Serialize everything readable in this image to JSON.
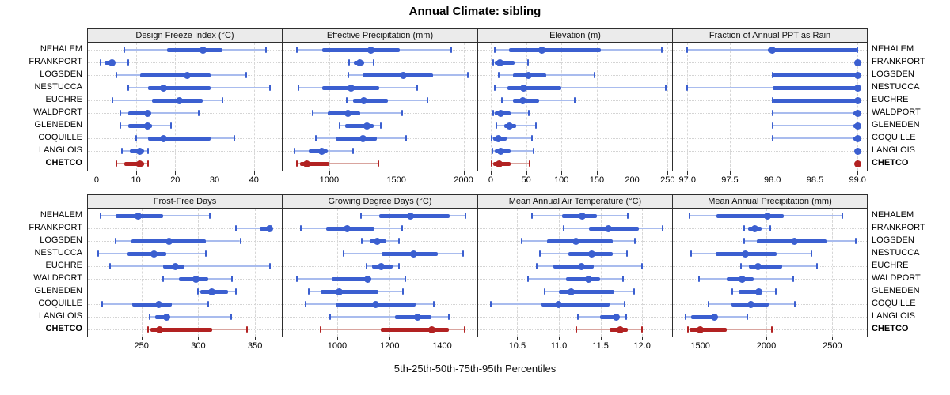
{
  "title": "Annual Climate: sibling",
  "caption": "5th-25th-50th-75th-95th Percentiles",
  "sites": [
    "NEHALEM",
    "FRANKPORT",
    "LOGSDEN",
    "NESTUCCA",
    "EUCHRE",
    "WALDPORT",
    "GLENEDEN",
    "COQUILLE",
    "LANGLOIS",
    "CHETCO"
  ],
  "highlight_site": "CHETCO",
  "colors": {
    "series_main": "#3b5fd0",
    "series_light": "#a9bcee",
    "highlight_main": "#b22222",
    "highlight_light": "#d9a49e",
    "strip_bg": "#ebebeb",
    "grid": "#d7d7d7",
    "border": "#2e2e2e"
  },
  "chart_data": {
    "type": "dotplot",
    "subtype": "percentile-interval-trellis",
    "percentiles": [
      5,
      25,
      50,
      75,
      95
    ],
    "legend_position": "none",
    "grid": "dashed-vertical-and-dotted-horizontal",
    "categories": [
      "NEHALEM",
      "FRANKPORT",
      "LOGSDEN",
      "NESTUCCA",
      "EUCHRE",
      "WALDPORT",
      "GLENEDEN",
      "COQUILLE",
      "LANGLOIS",
      "CHETCO"
    ],
    "panels": [
      {
        "id": "design-freeze-index",
        "title": "Design Freeze Index (°C)",
        "row": 0,
        "col": 0,
        "tick_values": [
          0,
          10,
          20,
          30,
          40
        ],
        "tick_labels": [
          "0",
          "10",
          "20",
          "30",
          "40"
        ],
        "xlim": [
          -2.2,
          47.1
        ],
        "values": {
          "NEHALEM": [
            7,
            18,
            27,
            32,
            43
          ],
          "FRANKPORT": [
            1,
            2,
            4,
            4.5,
            8
          ],
          "LOGSDEN": [
            5,
            11,
            23,
            29,
            38
          ],
          "NESTUCCA": [
            8,
            13,
            17,
            29,
            44
          ],
          "EUCHRE": [
            4,
            14,
            21,
            27,
            32
          ],
          "WALDPORT": [
            6,
            8,
            13,
            13.5,
            26
          ],
          "GLENEDEN": [
            6,
            8,
            13,
            14,
            19
          ],
          "COQUILLE": [
            10,
            13,
            17,
            29,
            35
          ],
          "LANGLOIS": [
            6.5,
            8.5,
            11,
            12,
            13
          ],
          "CHETCO": [
            5,
            7,
            11,
            12,
            13
          ]
        }
      },
      {
        "id": "effective-precipitation",
        "title": "Effective Precipitation (mm)",
        "row": 0,
        "col": 1,
        "tick_values": [
          1000,
          1500,
          2000
        ],
        "tick_labels": [
          "1000",
          "1500",
          "2000"
        ],
        "xlim": [
          653,
          2103
        ],
        "values": {
          "NEHALEM": [
            760,
            950,
            1310,
            1525,
            1910
          ],
          "FRANKPORT": [
            1150,
            1185,
            1230,
            1260,
            1330
          ],
          "LOGSDEN": [
            1140,
            1250,
            1550,
            1775,
            2030
          ],
          "NESTUCCA": [
            770,
            950,
            1165,
            1375,
            1655
          ],
          "EUCHRE": [
            1130,
            1180,
            1260,
            1435,
            1730
          ],
          "WALDPORT": [
            875,
            990,
            1140,
            1230,
            1545
          ],
          "GLENEDEN": [
            1075,
            1120,
            1280,
            1330,
            1385
          ],
          "COQUILLE": [
            900,
            1050,
            1250,
            1355,
            1570
          ],
          "LANGLOIS": [
            740,
            850,
            945,
            990,
            1180
          ],
          "CHETCO": [
            760,
            780,
            830,
            1000,
            1365
          ]
        }
      },
      {
        "id": "elevation",
        "title": "Elevation (m)",
        "row": 0,
        "col": 2,
        "tick_values": [
          0,
          50,
          100,
          150,
          200,
          250
        ],
        "tick_labels": [
          "0",
          "50",
          "100",
          "150",
          "200",
          "250"
        ],
        "xlim": [
          -17.8,
          256.4
        ],
        "values": {
          "NEHALEM": [
            6,
            26,
            72,
            156,
            242
          ],
          "FRANKPORT": [
            4,
            6,
            13,
            34,
            53
          ],
          "LOGSDEN": [
            11,
            31,
            53,
            79,
            147
          ],
          "NESTUCCA": [
            6,
            24,
            47,
            100,
            247
          ],
          "EUCHRE": [
            16,
            32,
            45,
            68,
            119
          ],
          "WALDPORT": [
            3,
            6,
            14,
            28,
            54
          ],
          "GLENEDEN": [
            8,
            19,
            26,
            36,
            64
          ],
          "COQUILLE": [
            1,
            4,
            11,
            23,
            58
          ],
          "LANGLOIS": [
            2,
            6,
            14,
            28,
            60
          ],
          "CHETCO": [
            1,
            3,
            12,
            28,
            55
          ]
        }
      },
      {
        "id": "fraction-annual-ppt-as-rain",
        "title": "Fraction of Annual PPT as Rain",
        "row": 0,
        "col": 3,
        "tick_values": [
          97.0,
          97.5,
          98.0,
          98.5,
          99.0
        ],
        "tick_labels": [
          "97.0",
          "97.5",
          "98.0",
          "98.5",
          "99.0"
        ],
        "xlim": [
          96.83,
          99.11
        ],
        "values": {
          "NEHALEM": [
            97.0,
            97.95,
            98.0,
            99.0,
            99.0
          ],
          "FRANKPORT": [
            99.0,
            99.0,
            99.0,
            99.0,
            99.0
          ],
          "LOGSDEN": [
            98.0,
            98.0,
            99.0,
            99.0,
            99.0
          ],
          "NESTUCCA": [
            97.0,
            98.0,
            99.0,
            99.0,
            99.0
          ],
          "EUCHRE": [
            98.0,
            98.0,
            99.0,
            99.0,
            99.0
          ],
          "WALDPORT": [
            98.0,
            98.95,
            99.0,
            99.0,
            99.0
          ],
          "GLENEDEN": [
            98.0,
            98.95,
            99.0,
            99.0,
            99.0
          ],
          "COQUILLE": [
            98.0,
            98.95,
            99.0,
            99.0,
            99.0
          ],
          "LANGLOIS": [
            99.0,
            99.0,
            99.0,
            99.0,
            99.0
          ],
          "CHETCO": [
            99.0,
            99.0,
            99.0,
            99.0,
            99.0
          ]
        }
      },
      {
        "id": "frost-free-days",
        "title": "Frost-Free Days",
        "row": 1,
        "col": 0,
        "tick_values": [
          250,
          300,
          350
        ],
        "tick_labels": [
          "250",
          "300",
          "350"
        ],
        "xlim": [
          202.8,
          373.6
        ],
        "values": {
          "NEHALEM": [
            214,
            227,
            247,
            269,
            310
          ],
          "FRANKPORT": [
            333,
            354,
            363,
            364,
            364
          ],
          "LOGSDEN": [
            227,
            241,
            274,
            307,
            337
          ],
          "NESTUCCA": [
            212,
            238,
            261,
            272,
            307
          ],
          "EUCHRE": [
            222,
            269,
            280,
            288,
            363
          ],
          "WALDPORT": [
            269,
            283,
            298,
            309,
            330
          ],
          "GLENEDEN": [
            300,
            302,
            312,
            326,
            333
          ],
          "COQUILLE": [
            215,
            242,
            265,
            277,
            309
          ],
          "LANGLOIS": [
            257,
            262,
            272,
            274,
            329
          ],
          "CHETCO": [
            256,
            258,
            266,
            312,
            343
          ]
        }
      },
      {
        "id": "growing-degree-days",
        "title": "Growing Degree Days (°C)",
        "row": 1,
        "col": 1,
        "tick_values": [
          1000,
          1200,
          1400
        ],
        "tick_labels": [
          "1000",
          "1200",
          "1400"
        ],
        "xlim": [
          792,
          1534
        ],
        "values": {
          "NEHALEM": [
            1090,
            1160,
            1280,
            1428,
            1488
          ],
          "FRANKPORT": [
            862,
            958,
            1039,
            1143,
            1246
          ],
          "LOGSDEN": [
            1094,
            1123,
            1153,
            1187,
            1234
          ],
          "NESTUCCA": [
            1023,
            1170,
            1291,
            1384,
            1480
          ],
          "EUCHRE": [
            1111,
            1133,
            1169,
            1212,
            1234
          ],
          "WALDPORT": [
            845,
            980,
            1115,
            1130,
            1259
          ],
          "GLENEDEN": [
            892,
            938,
            1007,
            1158,
            1249
          ],
          "COQUILLE": [
            879,
            993,
            1145,
            1299,
            1367
          ],
          "LANGLOIS": [
            973,
            1220,
            1305,
            1358,
            1424
          ],
          "CHETCO": [
            936,
            1167,
            1360,
            1424,
            1486
          ]
        }
      },
      {
        "id": "mean-annual-air-temperature",
        "title": "Mean Annual Air Temperature (°C)",
        "row": 1,
        "col": 2,
        "tick_values": [
          10.5,
          11.0,
          11.5,
          12.0
        ],
        "tick_labels": [
          "10.5",
          "11.0",
          "11.5",
          "12.0"
        ],
        "xlim": [
          10.03,
          12.36
        ],
        "values": {
          "NEHALEM": [
            10.68,
            11.04,
            11.28,
            11.46,
            11.83
          ],
          "FRANKPORT": [
            11.06,
            11.36,
            11.59,
            11.96,
            12.25
          ],
          "LOGSDEN": [
            10.55,
            10.86,
            11.2,
            11.65,
            11.91
          ],
          "NESTUCCA": [
            10.77,
            11.11,
            11.39,
            11.65,
            11.82
          ],
          "EUCHRE": [
            10.73,
            10.93,
            11.27,
            11.42,
            12.0
          ],
          "WALDPORT": [
            10.63,
            11.09,
            11.36,
            11.49,
            11.77
          ],
          "GLENEDEN": [
            10.83,
            11.0,
            11.15,
            11.67,
            11.9
          ],
          "COQUILLE": [
            10.18,
            10.79,
            11.0,
            11.61,
            11.79
          ],
          "LANGLOIS": [
            11.23,
            11.49,
            11.69,
            11.72,
            11.81
          ],
          "CHETCO": [
            11.21,
            11.61,
            11.74,
            11.83,
            12.0
          ]
        }
      },
      {
        "id": "mean-annual-precipitation",
        "title": "Mean Annual Precipitation (mm)",
        "row": 1,
        "col": 3,
        "tick_values": [
          1500,
          2000,
          2500
        ],
        "tick_labels": [
          "1500",
          "2000",
          "2500"
        ],
        "xlim": [
          1292,
          2762
        ],
        "values": {
          "NEHALEM": [
            1415,
            1620,
            2008,
            2132,
            2577
          ],
          "FRANKPORT": [
            1830,
            1862,
            1915,
            1964,
            2028
          ],
          "LOGSDEN": [
            1830,
            1929,
            2211,
            2454,
            2676
          ],
          "NESTUCCA": [
            1431,
            1613,
            1842,
            2079,
            2344
          ],
          "EUCHRE": [
            1810,
            1866,
            1935,
            2119,
            2383
          ],
          "WALDPORT": [
            1490,
            1698,
            1816,
            1905,
            2201
          ],
          "GLENEDEN": [
            1743,
            1787,
            1945,
            1954,
            2073
          ],
          "COQUILLE": [
            1559,
            1737,
            1885,
            2020,
            2217
          ],
          "LANGLOIS": [
            1387,
            1427,
            1605,
            1619,
            1856
          ],
          "CHETCO": [
            1407,
            1415,
            1496,
            1698,
            2043
          ]
        }
      }
    ]
  }
}
